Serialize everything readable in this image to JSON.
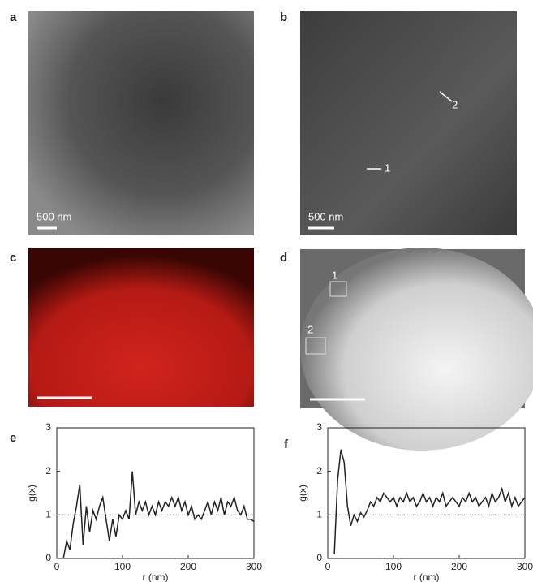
{
  "panels": {
    "a": {
      "label": "a",
      "scale": "500 nm"
    },
    "b": {
      "label": "b",
      "scale": "500 nm",
      "markers": [
        "1",
        "2"
      ]
    },
    "c": {
      "label": "c"
    },
    "d": {
      "label": "d",
      "markers": [
        "1",
        "2"
      ]
    }
  },
  "chart_data": [
    {
      "type": "line",
      "label": "e",
      "xlabel": "r (nm)",
      "ylabel": "g(x)",
      "color": "#222222",
      "hline": 1,
      "x": [
        10,
        15,
        20,
        25,
        30,
        35,
        40,
        45,
        50,
        55,
        60,
        65,
        70,
        75,
        80,
        85,
        90,
        95,
        100,
        105,
        110,
        115,
        120,
        125,
        130,
        135,
        140,
        145,
        150,
        155,
        160,
        165,
        170,
        175,
        180,
        185,
        190,
        195,
        200,
        205,
        210,
        215,
        220,
        225,
        230,
        235,
        240,
        245,
        250,
        255,
        260,
        265,
        270,
        275,
        280,
        285,
        290,
        295,
        300
      ],
      "values": [
        0,
        0.4,
        0.2,
        0.8,
        1.2,
        1.7,
        0.3,
        1.2,
        0.6,
        1.1,
        0.9,
        1.2,
        1.4,
        0.9,
        0.4,
        0.9,
        0.5,
        1.0,
        0.9,
        1.1,
        0.9,
        2.0,
        1.0,
        1.3,
        1.1,
        1.3,
        1.0,
        1.2,
        1.0,
        1.3,
        1.1,
        1.3,
        1.2,
        1.4,
        1.2,
        1.4,
        1.1,
        1.3,
        1.0,
        1.2,
        0.9,
        1.0,
        0.9,
        1.1,
        1.3,
        1.0,
        1.3,
        1.1,
        1.4,
        1.0,
        1.3,
        1.2,
        1.4,
        1.1,
        1.0,
        1.2,
        0.9,
        0.9,
        0.85
      ],
      "xlim": [
        0,
        300
      ],
      "ylim": [
        0,
        3
      ],
      "xticks": [
        0,
        100,
        200,
        300
      ],
      "yticks": [
        0,
        1,
        2,
        3
      ]
    },
    {
      "type": "line",
      "label": "f",
      "xlabel": "r (nm)",
      "ylabel": "g(x)",
      "color": "#222222",
      "hline": 1,
      "x": [
        10,
        15,
        20,
        25,
        30,
        35,
        40,
        45,
        50,
        55,
        60,
        65,
        70,
        75,
        80,
        85,
        90,
        95,
        100,
        105,
        110,
        115,
        120,
        125,
        130,
        135,
        140,
        145,
        150,
        155,
        160,
        165,
        170,
        175,
        180,
        185,
        190,
        195,
        200,
        205,
        210,
        215,
        220,
        225,
        230,
        235,
        240,
        245,
        250,
        255,
        260,
        265,
        270,
        275,
        280,
        285,
        290,
        295,
        300
      ],
      "values": [
        0.1,
        1.8,
        2.5,
        2.2,
        1.2,
        0.75,
        1.0,
        0.85,
        1.05,
        0.95,
        1.1,
        1.3,
        1.2,
        1.4,
        1.3,
        1.5,
        1.4,
        1.3,
        1.4,
        1.2,
        1.4,
        1.3,
        1.5,
        1.3,
        1.4,
        1.2,
        1.3,
        1.5,
        1.3,
        1.4,
        1.2,
        1.4,
        1.3,
        1.5,
        1.2,
        1.3,
        1.4,
        1.3,
        1.2,
        1.4,
        1.3,
        1.5,
        1.3,
        1.4,
        1.2,
        1.3,
        1.4,
        1.2,
        1.5,
        1.3,
        1.4,
        1.6,
        1.3,
        1.5,
        1.2,
        1.4,
        1.2,
        1.3,
        1.4
      ],
      "xlim": [
        0,
        300
      ],
      "ylim": [
        0,
        3
      ],
      "xticks": [
        0,
        100,
        200,
        300
      ],
      "yticks": [
        0,
        1,
        2,
        3
      ]
    }
  ]
}
